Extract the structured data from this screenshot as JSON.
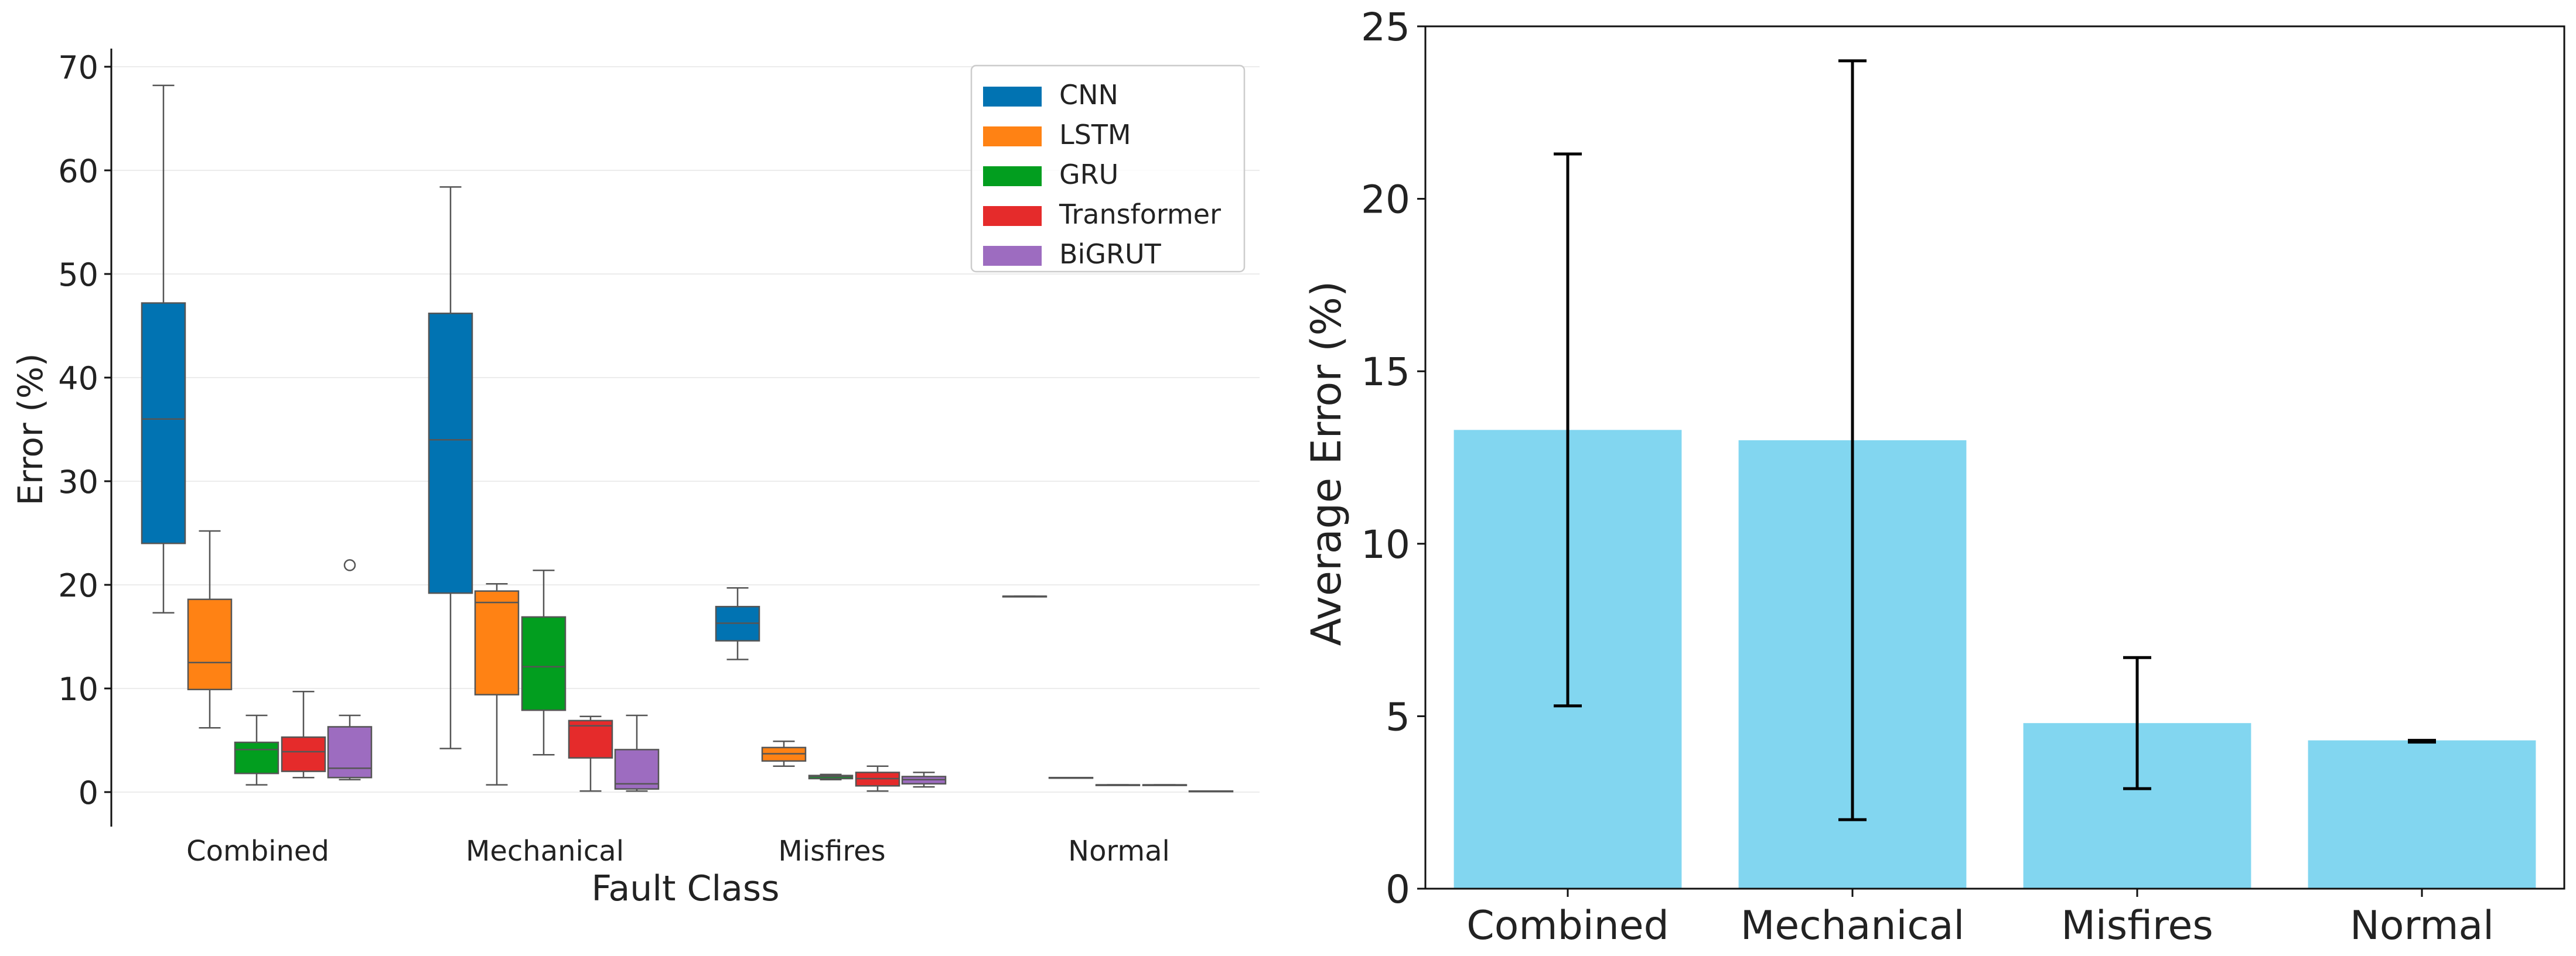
{
  "chart_data": [
    {
      "type": "box",
      "title": "",
      "xlabel": "Fault Class",
      "ylabel": "Error (%)",
      "ylim": [
        -3,
        72
      ],
      "yticks": [
        0,
        10,
        20,
        30,
        40,
        50,
        60,
        70
      ],
      "grid": "y",
      "legend": "top-right",
      "categories": [
        "Combined",
        "Mechanical",
        "Misfires",
        "Normal"
      ],
      "series": [
        {
          "name": "CNN",
          "color": "#0173b2",
          "boxes": [
            {
              "whislo": 17.3,
              "q1": 24.0,
              "med": 36.0,
              "q3": 47.2,
              "whishi": 68.2,
              "fliers": []
            },
            {
              "whislo": 4.2,
              "q1": 19.2,
              "med": 34.0,
              "q3": 46.2,
              "whishi": 58.4,
              "fliers": []
            },
            {
              "whislo": 12.8,
              "q1": 14.6,
              "med": 16.3,
              "q3": 17.9,
              "whishi": 19.7,
              "fliers": []
            },
            {
              "whislo": 18.9,
              "q1": 18.9,
              "med": 18.9,
              "q3": 18.9,
              "whishi": 18.9,
              "fliers": []
            }
          ]
        },
        {
          "name": "LSTM",
          "color": "#ff8214",
          "boxes": [
            {
              "whislo": 6.2,
              "q1": 9.9,
              "med": 12.5,
              "q3": 18.6,
              "whishi": 25.2,
              "fliers": []
            },
            {
              "whislo": 0.7,
              "q1": 9.4,
              "med": 18.3,
              "q3": 19.4,
              "whishi": 20.1,
              "fliers": []
            },
            {
              "whislo": 2.5,
              "q1": 3.0,
              "med": 3.7,
              "q3": 4.3,
              "whishi": 4.9,
              "fliers": []
            },
            {
              "whislo": 1.4,
              "q1": 1.4,
              "med": 1.4,
              "q3": 1.4,
              "whishi": 1.4,
              "fliers": []
            }
          ]
        },
        {
          "name": "GRU",
          "color": "#029e1f",
          "boxes": [
            {
              "whislo": 0.7,
              "q1": 1.8,
              "med": 4.1,
              "q3": 4.8,
              "whishi": 7.4,
              "fliers": []
            },
            {
              "whislo": 3.6,
              "q1": 7.9,
              "med": 12.1,
              "q3": 16.9,
              "whishi": 21.4,
              "fliers": []
            },
            {
              "whislo": 1.2,
              "q1": 1.3,
              "med": 1.5,
              "q3": 1.6,
              "whishi": 1.7,
              "fliers": []
            },
            {
              "whislo": 0.7,
              "q1": 0.7,
              "med": 0.7,
              "q3": 0.7,
              "whishi": 0.7,
              "fliers": []
            }
          ]
        },
        {
          "name": "Transformer",
          "color": "#e52b2b",
          "boxes": [
            {
              "whislo": 1.4,
              "q1": 2.0,
              "med": 3.9,
              "q3": 5.3,
              "whishi": 9.7,
              "fliers": []
            },
            {
              "whislo": 0.1,
              "q1": 3.3,
              "med": 6.4,
              "q3": 6.9,
              "whishi": 7.3,
              "fliers": []
            },
            {
              "whislo": 0.1,
              "q1": 0.6,
              "med": 1.3,
              "q3": 1.9,
              "whishi": 2.5,
              "fliers": []
            },
            {
              "whislo": 0.7,
              "q1": 0.7,
              "med": 0.7,
              "q3": 0.7,
              "whishi": 0.7,
              "fliers": []
            }
          ]
        },
        {
          "name": "BiGRUT",
          "color": "#9d6cc0",
          "boxes": [
            {
              "whislo": 1.2,
              "q1": 1.4,
              "med": 2.3,
              "q3": 6.3,
              "whishi": 7.4,
              "fliers": [
                21.9
              ]
            },
            {
              "whislo": 0.1,
              "q1": 0.3,
              "med": 0.8,
              "q3": 4.1,
              "whishi": 7.4,
              "fliers": []
            },
            {
              "whislo": 0.5,
              "q1": 0.8,
              "med": 1.2,
              "q3": 1.5,
              "whishi": 1.9,
              "fliers": []
            },
            {
              "whislo": 0.1,
              "q1": 0.1,
              "med": 0.1,
              "q3": 0.1,
              "whishi": 0.1,
              "fliers": []
            }
          ]
        }
      ]
    },
    {
      "type": "bar",
      "title": "",
      "xlabel": "",
      "ylabel": "Average Error (%)",
      "ylim": [
        0,
        25
      ],
      "yticks": [
        0,
        5,
        10,
        15,
        20,
        25
      ],
      "grid": "none",
      "categories": [
        "Combined",
        "Mechanical",
        "Misfires",
        "Normal"
      ],
      "values": [
        13.3,
        13.0,
        4.8,
        4.3
      ],
      "error_low": [
        5.3,
        2.0,
        2.9,
        4.25
      ],
      "error_high": [
        21.3,
        24.0,
        6.7,
        4.3
      ],
      "bar_color": "#82d6f0"
    }
  ]
}
